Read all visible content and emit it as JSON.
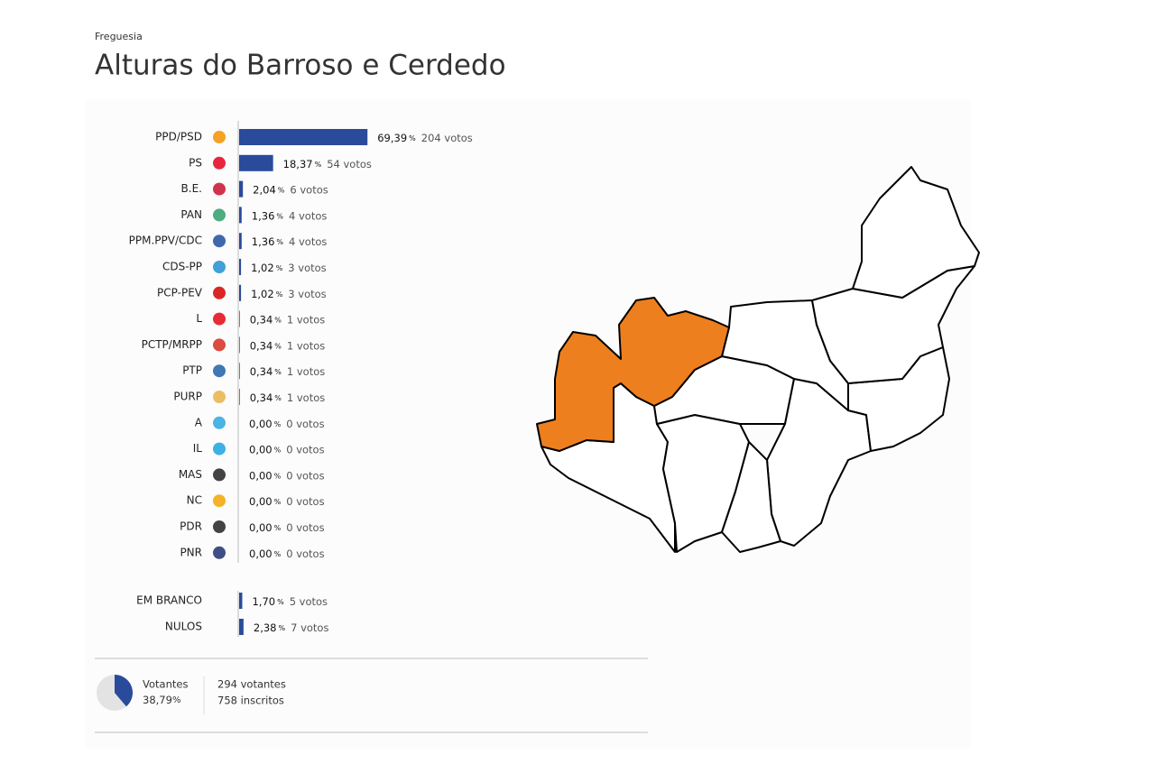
{
  "header": {
    "label": "Freguesia",
    "title": "Alturas do Barroso e Cerdedo"
  },
  "results": {
    "unit": "%",
    "rows": [
      {
        "party": "PPD/PSD",
        "percent": 69.39,
        "percent_label": "69,39",
        "votes_label": "204 votos"
      },
      {
        "party": "PS",
        "percent": 18.37,
        "percent_label": "18,37",
        "votes_label": "54 votos"
      },
      {
        "party": "B.E.",
        "percent": 2.04,
        "percent_label": "2,04",
        "votes_label": "6 votos"
      },
      {
        "party": "PAN",
        "percent": 1.36,
        "percent_label": "1,36",
        "votes_label": "4 votos"
      },
      {
        "party": "PPM.PPV/CDC",
        "percent": 1.36,
        "percent_label": "1,36",
        "votes_label": "4 votos"
      },
      {
        "party": "CDS-PP",
        "percent": 1.02,
        "percent_label": "1,02",
        "votes_label": "3 votos"
      },
      {
        "party": "PCP-PEV",
        "percent": 1.02,
        "percent_label": "1,02",
        "votes_label": "3 votos"
      },
      {
        "party": "L",
        "percent": 0.34,
        "percent_label": "0,34",
        "votes_label": "1 votos"
      },
      {
        "party": "PCTP/MRPP",
        "percent": 0.34,
        "percent_label": "0,34",
        "votes_label": "1 votos"
      },
      {
        "party": "PTP",
        "percent": 0.34,
        "percent_label": "0,34",
        "votes_label": "1 votos"
      },
      {
        "party": "PURP",
        "percent": 0.34,
        "percent_label": "0,34",
        "votes_label": "1 votos"
      },
      {
        "party": "A",
        "percent": 0,
        "percent_label": "0,00",
        "votes_label": "0 votos"
      },
      {
        "party": "IL",
        "percent": 0,
        "percent_label": "0,00",
        "votes_label": "0 votos"
      },
      {
        "party": "MAS",
        "percent": 0,
        "percent_label": "0,00",
        "votes_label": "0 votos"
      },
      {
        "party": "NC",
        "percent": 0,
        "percent_label": "0,00",
        "votes_label": "0 votos"
      },
      {
        "party": "PDR",
        "percent": 0,
        "percent_label": "0,00",
        "votes_label": "0 votos"
      },
      {
        "party": "PNR",
        "percent": 0,
        "percent_label": "0,00",
        "votes_label": "0 votos"
      }
    ],
    "other": [
      {
        "party": "EM BRANCO",
        "percent": 1.7,
        "percent_label": "1,70",
        "votes_label": "5 votos"
      },
      {
        "party": "NULOS",
        "percent": 2.38,
        "percent_label": "2,38",
        "votes_label": "7 votos"
      }
    ]
  },
  "turnout": {
    "label": "Votantes",
    "percent": 38.79,
    "percent_label": "38,79",
    "voters_label": "294 votantes",
    "registered_label": "758 inscritos"
  }
}
